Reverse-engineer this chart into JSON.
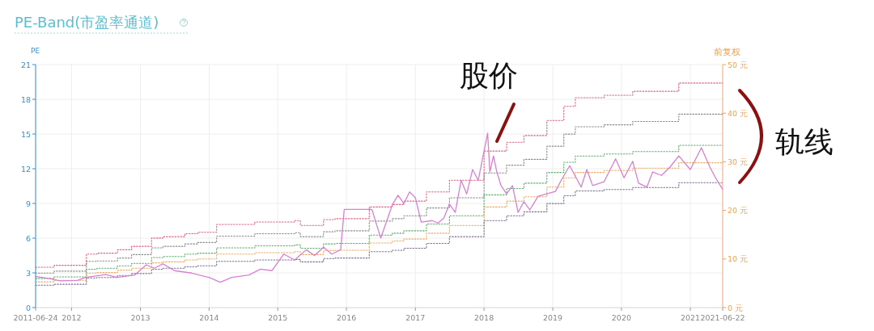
{
  "chart_data": {
    "type": "line",
    "title": "PE-Band(市盈率通道)",
    "ylabel": "PE",
    "y2label": "前复权",
    "annotations": [
      "股价",
      "轨线"
    ],
    "xlim": [
      "2011-06-24",
      "2021-06-22"
    ],
    "xticks": [
      "2011-06-24",
      "2012",
      "2013",
      "2014",
      "2015",
      "2016",
      "2017",
      "2018",
      "2019",
      "2020",
      "2021",
      "2021-06-22"
    ],
    "ylim": [
      0,
      21
    ],
    "yticks": [
      0,
      3,
      6,
      9,
      12,
      15,
      18,
      21
    ],
    "y2lim": [
      0,
      50
    ],
    "y2ticks": [
      {
        "value": 0,
        "label": "0 元"
      },
      {
        "value": 10,
        "label": "10 元"
      },
      {
        "value": 20,
        "label": "20 元"
      },
      {
        "value": 30,
        "label": "30 元"
      },
      {
        "value": 40,
        "label": "40 元"
      },
      {
        "value": 50,
        "label": "50 元"
      }
    ],
    "grid": true,
    "marker": "none",
    "x": [
      "2011-06-24",
      "2011-10-01",
      "2012-03-20",
      "2012-05-15",
      "2012-09-01",
      "2012-11-15",
      "2013-03-01",
      "2013-05-01",
      "2013-08-25",
      "2013-11-01",
      "2014-02-10",
      "2014-09-01",
      "2015-04-01",
      "2015-05-01",
      "2015-09-01",
      "2015-11-01",
      "2016-05-01",
      "2016-09-01",
      "2016-11-01",
      "2017-03-01",
      "2017-07-01",
      "2018-01-01",
      "2018-05-01",
      "2018-08-01",
      "2018-12-01",
      "2019-03-01",
      "2019-05-01",
      "2019-10-01",
      "2020-03-01",
      "2020-11-01",
      "2021-06-22"
    ],
    "series": [
      {
        "type": "step",
        "axis": "y2",
        "color": "#e0607e",
        "line_style": "dotted",
        "values": [
          8.3,
          8.7,
          11.0,
          11.2,
          11.9,
          12.6,
          14.3,
          14.6,
          15.2,
          15.5,
          17.1,
          17.6,
          17.9,
          16.9,
          18.1,
          18.3,
          20.7,
          21.2,
          21.9,
          23.8,
          26.2,
          32.2,
          34.0,
          35.4,
          38.5,
          41.4,
          43.2,
          43.7,
          44.5,
          46.2,
          46.2
        ]
      },
      {
        "type": "step",
        "axis": "y2",
        "color": "#8a8a8a",
        "line_style": "dotted",
        "values": [
          7.1,
          7.5,
          9.5,
          9.6,
          10.2,
          10.9,
          12.3,
          12.6,
          13.1,
          13.4,
          14.7,
          15.2,
          15.4,
          14.6,
          15.6,
          15.8,
          17.8,
          18.3,
          18.9,
          20.5,
          22.6,
          27.7,
          29.3,
          30.5,
          33.2,
          35.7,
          37.2,
          37.6,
          38.3,
          39.8,
          39.8
        ]
      },
      {
        "type": "step",
        "axis": "y2",
        "color": "#5cae6a",
        "line_style": "dotted",
        "values": [
          6.0,
          6.3,
          7.9,
          8.1,
          8.6,
          9.1,
          10.3,
          10.5,
          11.0,
          11.2,
          12.3,
          12.7,
          12.9,
          12.2,
          13.1,
          13.2,
          14.9,
          15.3,
          15.8,
          17.2,
          18.9,
          23.2,
          24.5,
          25.6,
          27.8,
          29.9,
          31.2,
          31.6,
          32.1,
          33.4,
          33.4
        ]
      },
      {
        "type": "step",
        "axis": "y2",
        "color": "#f0a860",
        "line_style": "dotted",
        "values": [
          5.3,
          5.6,
          7.1,
          7.2,
          7.7,
          8.1,
          9.2,
          9.4,
          9.8,
          10.0,
          11.0,
          11.3,
          11.5,
          10.9,
          11.7,
          11.8,
          13.3,
          13.7,
          14.1,
          15.3,
          16.9,
          20.7,
          21.9,
          22.8,
          24.8,
          26.7,
          27.8,
          28.2,
          28.7,
          29.8,
          29.8
        ]
      },
      {
        "type": "step",
        "axis": "y2",
        "color": "#7a6f8f",
        "line_style": "dotted",
        "values": [
          4.6,
          4.8,
          6.1,
          6.2,
          6.6,
          7.0,
          7.9,
          8.1,
          8.4,
          8.6,
          9.5,
          9.8,
          9.9,
          9.4,
          10.1,
          10.2,
          11.5,
          11.8,
          12.2,
          13.2,
          14.6,
          17.9,
          18.9,
          19.7,
          21.4,
          23.0,
          24.0,
          24.3,
          24.7,
          25.7,
          25.7
        ]
      },
      {
        "type": "line",
        "axis": "y2",
        "color": "#d97fd3",
        "line_style": "solid",
        "x": [
          "2011-06-24",
          "2011-09-01",
          "2011-11-01",
          "2012-02-01",
          "2012-03-15",
          "2012-07-01",
          "2012-09-01",
          "2012-12-01",
          "2013-02-01",
          "2013-03-15",
          "2013-05-01",
          "2013-07-01",
          "2013-10-01",
          "2014-01-01",
          "2014-03-01",
          "2014-05-01",
          "2014-08-01",
          "2014-10-01",
          "2014-12-01",
          "2015-02-01",
          "2015-04-01",
          "2015-06-01",
          "2015-07-15",
          "2015-09-01",
          "2015-10-15",
          "2015-12-01",
          "2015-12-20",
          "2016-05-15",
          "2016-07-01",
          "2016-09-01",
          "2016-10-01",
          "2016-11-01",
          "2016-12-01",
          "2017-01-01",
          "2017-02-01",
          "2017-04-01",
          "2017-05-01",
          "2017-06-01",
          "2017-07-01",
          "2017-08-01",
          "2017-09-01",
          "2017-10-01",
          "2017-11-01",
          "2017-12-01",
          "2018-01-20",
          "2018-02-01",
          "2018-02-20",
          "2018-03-10",
          "2018-04-01",
          "2018-05-01",
          "2018-06-01",
          "2018-07-01",
          "2018-08-01",
          "2018-09-01",
          "2018-10-15",
          "2019-01-15",
          "2019-02-15",
          "2019-04-01",
          "2019-06-01",
          "2019-07-01",
          "2019-08-01",
          "2019-10-01",
          "2019-12-01",
          "2020-01-15",
          "2020-03-01",
          "2020-04-01",
          "2020-05-15",
          "2020-06-15",
          "2020-08-01",
          "2020-09-15",
          "2020-11-01",
          "2021-01-01",
          "2021-03-01",
          "2021-04-15",
          "2021-05-15",
          "2021-06-22"
        ],
        "values": [
          6.4,
          6.0,
          5.5,
          5.6,
          6.2,
          6.8,
          6.2,
          6.7,
          8.8,
          8.1,
          9.0,
          7.6,
          7.1,
          6.2,
          5.2,
          6.2,
          6.7,
          7.9,
          7.6,
          11.0,
          9.8,
          11.9,
          10.7,
          12.4,
          11.0,
          11.9,
          20.2,
          20.2,
          14.3,
          21.2,
          23.1,
          21.4,
          23.8,
          22.6,
          17.6,
          17.9,
          17.4,
          18.4,
          21.3,
          19.6,
          26.2,
          23.4,
          28.4,
          26.2,
          35.9,
          27.9,
          31.2,
          27.9,
          25.1,
          23.4,
          25.1,
          19.6,
          21.8,
          20.1,
          22.9,
          23.9,
          26.2,
          29.2,
          24.8,
          28.4,
          25.1,
          25.9,
          30.6,
          26.7,
          30.1,
          25.6,
          24.8,
          27.9,
          27.2,
          28.9,
          31.2,
          28.4,
          32.9,
          28.9,
          26.7,
          24.3
        ]
      }
    ]
  }
}
